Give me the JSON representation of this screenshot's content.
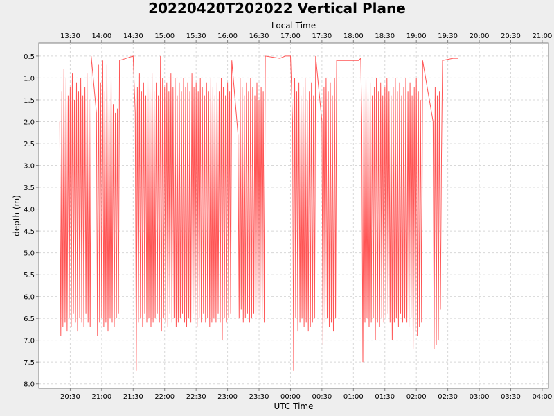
{
  "chart_data": {
    "type": "line",
    "title": "20220420T202022 Vertical Plane",
    "top_axis_label": "Local Time",
    "xlabel": "UTC Time",
    "ylabel": "depth (m)",
    "ylim": [
      0.2,
      8.1
    ],
    "y_inverted": true,
    "grid": true,
    "series_color": "#ff5555",
    "y_ticks": [
      "0.5",
      "1.0",
      "1.5",
      "2.0",
      "2.5",
      "3.0",
      "3.5",
      "4.0",
      "4.5",
      "5.0",
      "5.5",
      "6.0",
      "6.5",
      "7.0",
      "7.5",
      "8.0"
    ],
    "utc_ticks": [
      "20:30",
      "21:00",
      "21:30",
      "22:00",
      "22:30",
      "23:00",
      "23:30",
      "00:00",
      "00:30",
      "01:00",
      "01:30",
      "02:00",
      "02:30",
      "03:00",
      "03:30",
      "04:00"
    ],
    "local_ticks": [
      "13:30",
      "14:00",
      "14:30",
      "15:00",
      "15:30",
      "16:00",
      "16:30",
      "17:00",
      "17:30",
      "18:00",
      "18:30",
      "19:00",
      "19:30",
      "20:00",
      "20:30",
      "21:00"
    ],
    "x_range_utc": [
      "2022-04-20 20:00",
      "2022-04-21 04:06"
    ],
    "series": [
      {
        "x_start_utc": "2022-04-20 20:20",
        "points": [
          [
            "20:20",
            2.0
          ],
          [
            "20:21",
            6.9
          ],
          [
            "20:22",
            1.3
          ],
          [
            "20:23",
            6.7
          ],
          [
            "20:24",
            0.8
          ],
          [
            "20:25",
            6.6
          ],
          [
            "20:26",
            1.0
          ],
          [
            "20:27",
            6.8
          ],
          [
            "20:28",
            1.4
          ],
          [
            "20:29",
            6.5
          ],
          [
            "20:30",
            1.2
          ],
          [
            "20:31",
            6.7
          ],
          [
            "20:32",
            0.9
          ],
          [
            "20:33",
            6.4
          ],
          [
            "20:34",
            1.5
          ],
          [
            "20:35",
            6.6
          ],
          [
            "20:36",
            1.1
          ],
          [
            "20:37",
            6.8
          ],
          [
            "20:38",
            1.3
          ],
          [
            "20:39",
            6.5
          ],
          [
            "20:40",
            1.0
          ],
          [
            "20:41",
            6.6
          ],
          [
            "20:42",
            1.4
          ],
          [
            "20:43",
            6.7
          ],
          [
            "20:44",
            1.2
          ],
          [
            "20:45",
            6.4
          ],
          [
            "20:46",
            0.9
          ],
          [
            "20:47",
            6.6
          ],
          [
            "20:48",
            1.5
          ],
          [
            "20:49",
            6.7
          ],
          [
            "20:50",
            0.5
          ],
          [
            "20:55",
            1.8
          ],
          [
            "20:56",
            6.9
          ],
          [
            "20:57",
            0.7
          ],
          [
            "20:58",
            6.6
          ],
          [
            "20:59",
            1.1
          ],
          [
            "21:00",
            6.5
          ],
          [
            "21:01",
            0.6
          ],
          [
            "21:02",
            6.7
          ],
          [
            "21:03",
            1.3
          ],
          [
            "21:04",
            6.6
          ],
          [
            "21:05",
            0.7
          ],
          [
            "21:06",
            6.8
          ],
          [
            "21:07",
            1.5
          ],
          [
            "21:08",
            6.5
          ],
          [
            "21:09",
            1.0
          ],
          [
            "21:10",
            6.6
          ],
          [
            "21:11",
            1.6
          ],
          [
            "21:12",
            6.7
          ],
          [
            "21:13",
            1.8
          ],
          [
            "21:14",
            6.5
          ],
          [
            "21:15",
            1.7
          ],
          [
            "21:16",
            6.4
          ],
          [
            "21:17",
            0.6
          ],
          [
            "21:30",
            0.5
          ],
          [
            "21:32",
            1.8
          ],
          [
            "21:33",
            7.7
          ],
          [
            "21:34",
            1.2
          ],
          [
            "21:35",
            6.6
          ],
          [
            "21:36",
            0.9
          ],
          [
            "21:37",
            6.5
          ],
          [
            "21:38",
            1.3
          ],
          [
            "21:39",
            6.7
          ],
          [
            "21:40",
            1.1
          ],
          [
            "21:41",
            6.4
          ],
          [
            "21:42",
            1.4
          ],
          [
            "21:43",
            6.6
          ],
          [
            "21:44",
            1.0
          ],
          [
            "21:45",
            6.5
          ],
          [
            "21:46",
            1.2
          ],
          [
            "21:47",
            6.7
          ],
          [
            "21:48",
            0.9
          ],
          [
            "21:49",
            6.6
          ],
          [
            "21:50",
            1.3
          ],
          [
            "21:51",
            6.5
          ],
          [
            "21:52",
            1.1
          ],
          [
            "21:53",
            6.4
          ],
          [
            "21:54",
            1.4
          ],
          [
            "21:55",
            6.6
          ],
          [
            "21:56",
            0.5
          ],
          [
            "21:57",
            6.8
          ],
          [
            "21:58",
            1.0
          ],
          [
            "21:59",
            6.5
          ],
          [
            "22:00",
            1.2
          ],
          [
            "22:01",
            6.6
          ],
          [
            "22:02",
            1.1
          ],
          [
            "22:03",
            6.7
          ],
          [
            "22:04",
            1.3
          ],
          [
            "22:05",
            6.4
          ],
          [
            "22:06",
            0.9
          ],
          [
            "22:07",
            6.6
          ],
          [
            "22:08",
            1.2
          ],
          [
            "22:09",
            6.5
          ],
          [
            "22:10",
            1.0
          ],
          [
            "22:11",
            6.7
          ],
          [
            "22:12",
            1.4
          ],
          [
            "22:13",
            6.6
          ],
          [
            "22:14",
            1.1
          ],
          [
            "22:15",
            6.5
          ],
          [
            "22:16",
            1.3
          ],
          [
            "22:17",
            6.4
          ],
          [
            "22:18",
            1.0
          ],
          [
            "22:19",
            6.6
          ],
          [
            "22:20",
            1.2
          ],
          [
            "22:21",
            6.7
          ],
          [
            "22:22",
            1.1
          ],
          [
            "22:23",
            6.5
          ],
          [
            "22:24",
            1.3
          ],
          [
            "22:25",
            6.6
          ],
          [
            "22:26",
            0.9
          ],
          [
            "22:27",
            6.4
          ],
          [
            "22:28",
            1.2
          ],
          [
            "22:29",
            6.6
          ],
          [
            "22:30",
            1.1
          ],
          [
            "22:31",
            6.7
          ],
          [
            "22:32",
            1.3
          ],
          [
            "22:33",
            6.5
          ],
          [
            "22:34",
            1.0
          ],
          [
            "22:35",
            6.6
          ],
          [
            "22:36",
            1.2
          ],
          [
            "22:37",
            6.4
          ],
          [
            "22:38",
            1.4
          ],
          [
            "22:39",
            6.6
          ],
          [
            "22:40",
            1.1
          ],
          [
            "22:41",
            6.5
          ],
          [
            "22:42",
            1.3
          ],
          [
            "22:43",
            6.7
          ],
          [
            "22:44",
            1.0
          ],
          [
            "22:45",
            6.6
          ],
          [
            "22:46",
            1.2
          ],
          [
            "22:47",
            6.5
          ],
          [
            "22:48",
            1.4
          ],
          [
            "22:49",
            6.6
          ],
          [
            "22:50",
            1.1
          ],
          [
            "22:51",
            6.4
          ],
          [
            "22:52",
            1.3
          ],
          [
            "22:53",
            6.6
          ],
          [
            "22:54",
            1.0
          ],
          [
            "22:55",
            7.0
          ],
          [
            "22:56",
            1.2
          ],
          [
            "22:57",
            6.5
          ],
          [
            "22:58",
            1.4
          ],
          [
            "22:59",
            6.6
          ],
          [
            "23:00",
            1.1
          ],
          [
            "23:01",
            6.5
          ],
          [
            "23:02",
            1.3
          ],
          [
            "23:03",
            6.4
          ],
          [
            "23:04",
            0.6
          ],
          [
            "23:10",
            2.3
          ],
          [
            "23:11",
            6.5
          ],
          [
            "23:12",
            1.0
          ],
          [
            "23:13",
            6.3
          ],
          [
            "23:14",
            1.2
          ],
          [
            "23:15",
            6.6
          ],
          [
            "23:16",
            1.4
          ],
          [
            "23:17",
            6.5
          ],
          [
            "23:18",
            1.1
          ],
          [
            "23:19",
            6.4
          ],
          [
            "23:20",
            1.3
          ],
          [
            "23:21",
            6.6
          ],
          [
            "23:22",
            1.0
          ],
          [
            "23:23",
            6.5
          ],
          [
            "23:24",
            1.2
          ],
          [
            "23:25",
            6.4
          ],
          [
            "23:26",
            1.4
          ],
          [
            "23:27",
            6.6
          ],
          [
            "23:28",
            1.1
          ],
          [
            "23:29",
            6.5
          ],
          [
            "23:30",
            1.5
          ],
          [
            "23:31",
            6.6
          ],
          [
            "23:32",
            1.2
          ],
          [
            "23:33",
            6.5
          ],
          [
            "23:34",
            1.3
          ],
          [
            "23:35",
            6.6
          ],
          [
            "23:36",
            0.5
          ],
          [
            "23:50",
            0.55
          ],
          [
            "23:55",
            0.5
          ],
          [
            "00:00",
            0.5
          ],
          [
            "00:02",
            2.0
          ],
          [
            "00:03",
            7.7
          ],
          [
            "00:04",
            1.0
          ],
          [
            "00:05",
            6.5
          ],
          [
            "00:06",
            1.3
          ],
          [
            "00:07",
            6.8
          ],
          [
            "00:08",
            1.1
          ],
          [
            "00:09",
            6.6
          ],
          [
            "00:10",
            1.4
          ],
          [
            "00:11",
            6.5
          ],
          [
            "00:12",
            1.2
          ],
          [
            "00:13",
            6.7
          ],
          [
            "00:14",
            1.0
          ],
          [
            "00:15",
            6.6
          ],
          [
            "00:16",
            1.5
          ],
          [
            "00:17",
            6.8
          ],
          [
            "00:18",
            1.3
          ],
          [
            "00:19",
            6.7
          ],
          [
            "00:20",
            1.1
          ],
          [
            "00:21",
            6.6
          ],
          [
            "00:22",
            1.4
          ],
          [
            "00:23",
            6.5
          ],
          [
            "00:24",
            0.5
          ],
          [
            "00:30",
            2.0
          ],
          [
            "00:31",
            7.1
          ],
          [
            "00:32",
            1.2
          ],
          [
            "00:33",
            6.6
          ],
          [
            "00:34",
            1.0
          ],
          [
            "00:35",
            6.5
          ],
          [
            "00:36",
            1.3
          ],
          [
            "00:37",
            6.7
          ],
          [
            "00:38",
            1.1
          ],
          [
            "00:39",
            6.6
          ],
          [
            "00:40",
            1.4
          ],
          [
            "00:41",
            6.8
          ],
          [
            "00:42",
            1.0
          ],
          [
            "00:43",
            6.5
          ],
          [
            "00:44",
            0.6
          ],
          [
            "01:05",
            0.6
          ],
          [
            "01:07",
            0.55
          ],
          [
            "01:08",
            2.0
          ],
          [
            "01:09",
            7.5
          ],
          [
            "01:10",
            1.2
          ],
          [
            "01:11",
            6.6
          ],
          [
            "01:12",
            1.0
          ],
          [
            "01:13",
            6.5
          ],
          [
            "01:14",
            1.3
          ],
          [
            "01:15",
            6.7
          ],
          [
            "01:16",
            1.1
          ],
          [
            "01:17",
            6.6
          ],
          [
            "01:18",
            1.4
          ],
          [
            "01:19",
            6.5
          ],
          [
            "01:20",
            1.2
          ],
          [
            "01:21",
            7.0
          ],
          [
            "01:22",
            1.0
          ],
          [
            "01:23",
            6.6
          ],
          [
            "01:24",
            1.3
          ],
          [
            "01:25",
            6.7
          ],
          [
            "01:26",
            1.1
          ],
          [
            "01:27",
            6.5
          ],
          [
            "01:28",
            1.4
          ],
          [
            "01:29",
            6.6
          ],
          [
            "01:30",
            1.2
          ],
          [
            "01:31",
            6.5
          ],
          [
            "01:32",
            1.0
          ],
          [
            "01:33",
            6.4
          ],
          [
            "01:34",
            1.3
          ],
          [
            "01:35",
            6.6
          ],
          [
            "01:36",
            1.4
          ],
          [
            "01:37",
            7.0
          ],
          [
            "01:38",
            1.2
          ],
          [
            "01:39",
            6.6
          ],
          [
            "01:40",
            1.0
          ],
          [
            "01:41",
            6.5
          ],
          [
            "01:42",
            1.3
          ],
          [
            "01:43",
            6.7
          ],
          [
            "01:44",
            1.1
          ],
          [
            "01:45",
            6.4
          ],
          [
            "01:46",
            1.4
          ],
          [
            "01:47",
            6.6
          ],
          [
            "01:48",
            1.2
          ],
          [
            "01:49",
            6.5
          ],
          [
            "01:50",
            1.0
          ],
          [
            "01:51",
            6.6
          ],
          [
            "01:52",
            1.3
          ],
          [
            "01:53",
            6.7
          ],
          [
            "01:54",
            1.1
          ],
          [
            "01:55",
            6.5
          ],
          [
            "01:56",
            1.4
          ],
          [
            "01:57",
            7.2
          ],
          [
            "01:58",
            1.2
          ],
          [
            "01:59",
            6.8
          ],
          [
            "02:00",
            1.0
          ],
          [
            "02:01",
            6.9
          ],
          [
            "02:02",
            1.3
          ],
          [
            "02:03",
            6.7
          ],
          [
            "02:04",
            1.5
          ],
          [
            "02:05",
            6.6
          ],
          [
            "02:06",
            0.6
          ],
          [
            "02:16",
            2.0
          ],
          [
            "02:17",
            7.2
          ],
          [
            "02:18",
            1.2
          ],
          [
            "02:19",
            7.1
          ],
          [
            "02:20",
            1.4
          ],
          [
            "02:21",
            7.0
          ],
          [
            "02:22",
            1.3
          ],
          [
            "02:23",
            6.3
          ],
          [
            "02:24",
            2.8
          ],
          [
            "02:25",
            0.6
          ],
          [
            "02:35",
            0.55
          ],
          [
            "02:40",
            0.55
          ]
        ]
      }
    ]
  }
}
